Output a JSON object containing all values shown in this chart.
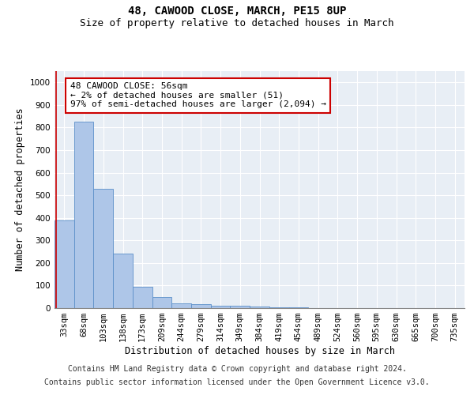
{
  "title_line1": "48, CAWOOD CLOSE, MARCH, PE15 8UP",
  "title_line2": "Size of property relative to detached houses in March",
  "xlabel": "Distribution of detached houses by size in March",
  "ylabel": "Number of detached properties",
  "categories": [
    "33sqm",
    "68sqm",
    "103sqm",
    "138sqm",
    "173sqm",
    "209sqm",
    "244sqm",
    "279sqm",
    "314sqm",
    "349sqm",
    "384sqm",
    "419sqm",
    "454sqm",
    "489sqm",
    "524sqm",
    "560sqm",
    "595sqm",
    "630sqm",
    "665sqm",
    "700sqm",
    "735sqm"
  ],
  "values": [
    390,
    825,
    530,
    240,
    95,
    50,
    20,
    16,
    12,
    10,
    8,
    3,
    2,
    1,
    1,
    0,
    0,
    0,
    0,
    0,
    0
  ],
  "bar_color": "#aec6e8",
  "bar_edge_color": "#5b8fc9",
  "marker_color": "#cc0000",
  "ylim": [
    0,
    1050
  ],
  "yticks": [
    0,
    100,
    200,
    300,
    400,
    500,
    600,
    700,
    800,
    900,
    1000
  ],
  "annotation_text": "48 CAWOOD CLOSE: 56sqm\n← 2% of detached houses are smaller (51)\n97% of semi-detached houses are larger (2,094) →",
  "annotation_box_color": "#ffffff",
  "annotation_box_edge_color": "#cc0000",
  "footer_line1": "Contains HM Land Registry data © Crown copyright and database right 2024.",
  "footer_line2": "Contains public sector information licensed under the Open Government Licence v3.0.",
  "background_color": "#e8eef5",
  "grid_color": "#ffffff",
  "title_fontsize": 10,
  "subtitle_fontsize": 9,
  "axis_label_fontsize": 8.5,
  "tick_fontsize": 7.5,
  "annotation_fontsize": 8,
  "footer_fontsize": 7
}
